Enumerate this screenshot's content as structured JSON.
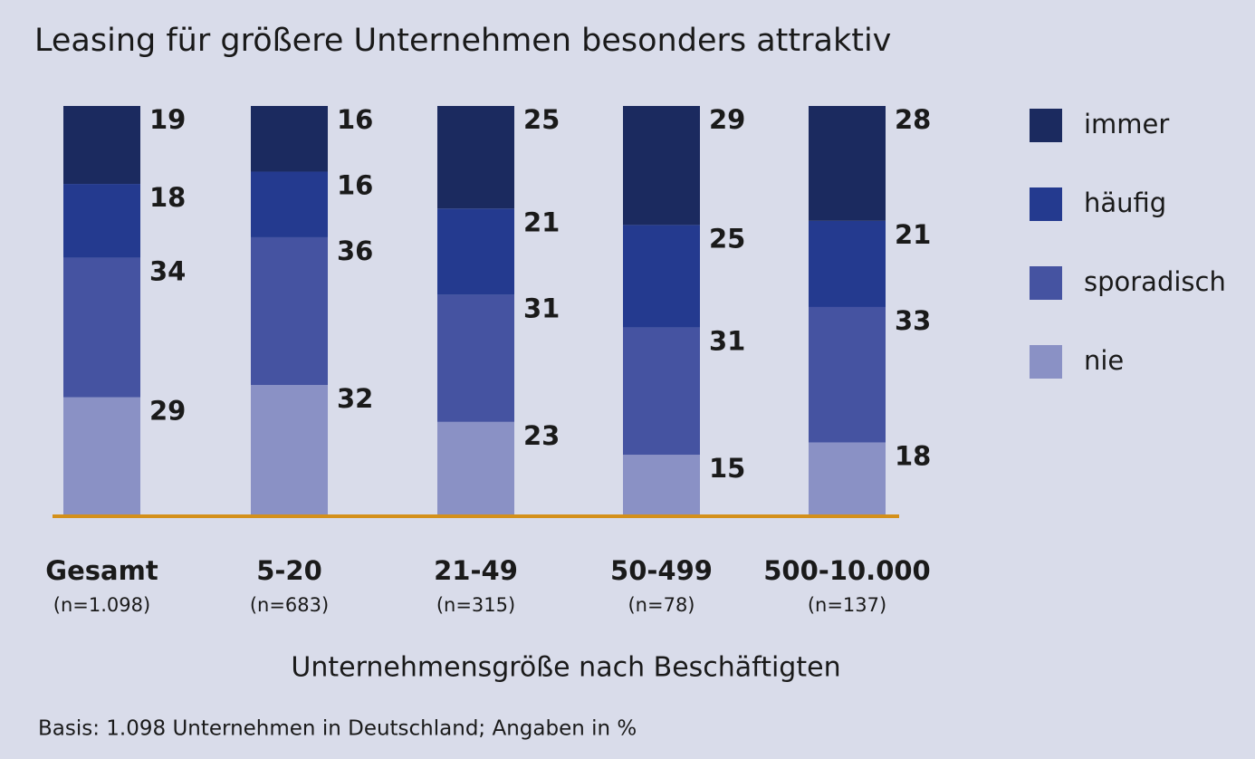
{
  "chart_data": {
    "type": "stacked_bar",
    "title": "Leasing für größere Unternehmen besonders attraktiv",
    "categories": [
      "Gesamt",
      "5-20",
      "21-49",
      "50-499",
      "500-10.000"
    ],
    "category_notes": [
      "(n=1.098)",
      "(n=683)",
      "(n=315)",
      "(n=78)",
      "(n=137)"
    ],
    "xlabel": "Unternehmensgröße nach Beschäftigten",
    "footnote": "Basis: 1.098 Unternehmen in Deutschland; Angaben in %",
    "ylim": [
      0,
      100
    ],
    "legend": "right",
    "series": [
      {
        "name": "immer",
        "color": "#1b2a5f",
        "values": [
          19,
          16,
          25,
          29,
          28
        ]
      },
      {
        "name": "häufig",
        "color": "#243a8f",
        "values": [
          18,
          16,
          21,
          25,
          21
        ]
      },
      {
        "name": "sporadisch",
        "color": "#4553a1",
        "values": [
          34,
          36,
          31,
          31,
          33
        ]
      },
      {
        "name": "nie",
        "color": "#8a91c5",
        "values": [
          29,
          32,
          23,
          15,
          18
        ]
      }
    ],
    "baseline_color": "#d4901a"
  }
}
